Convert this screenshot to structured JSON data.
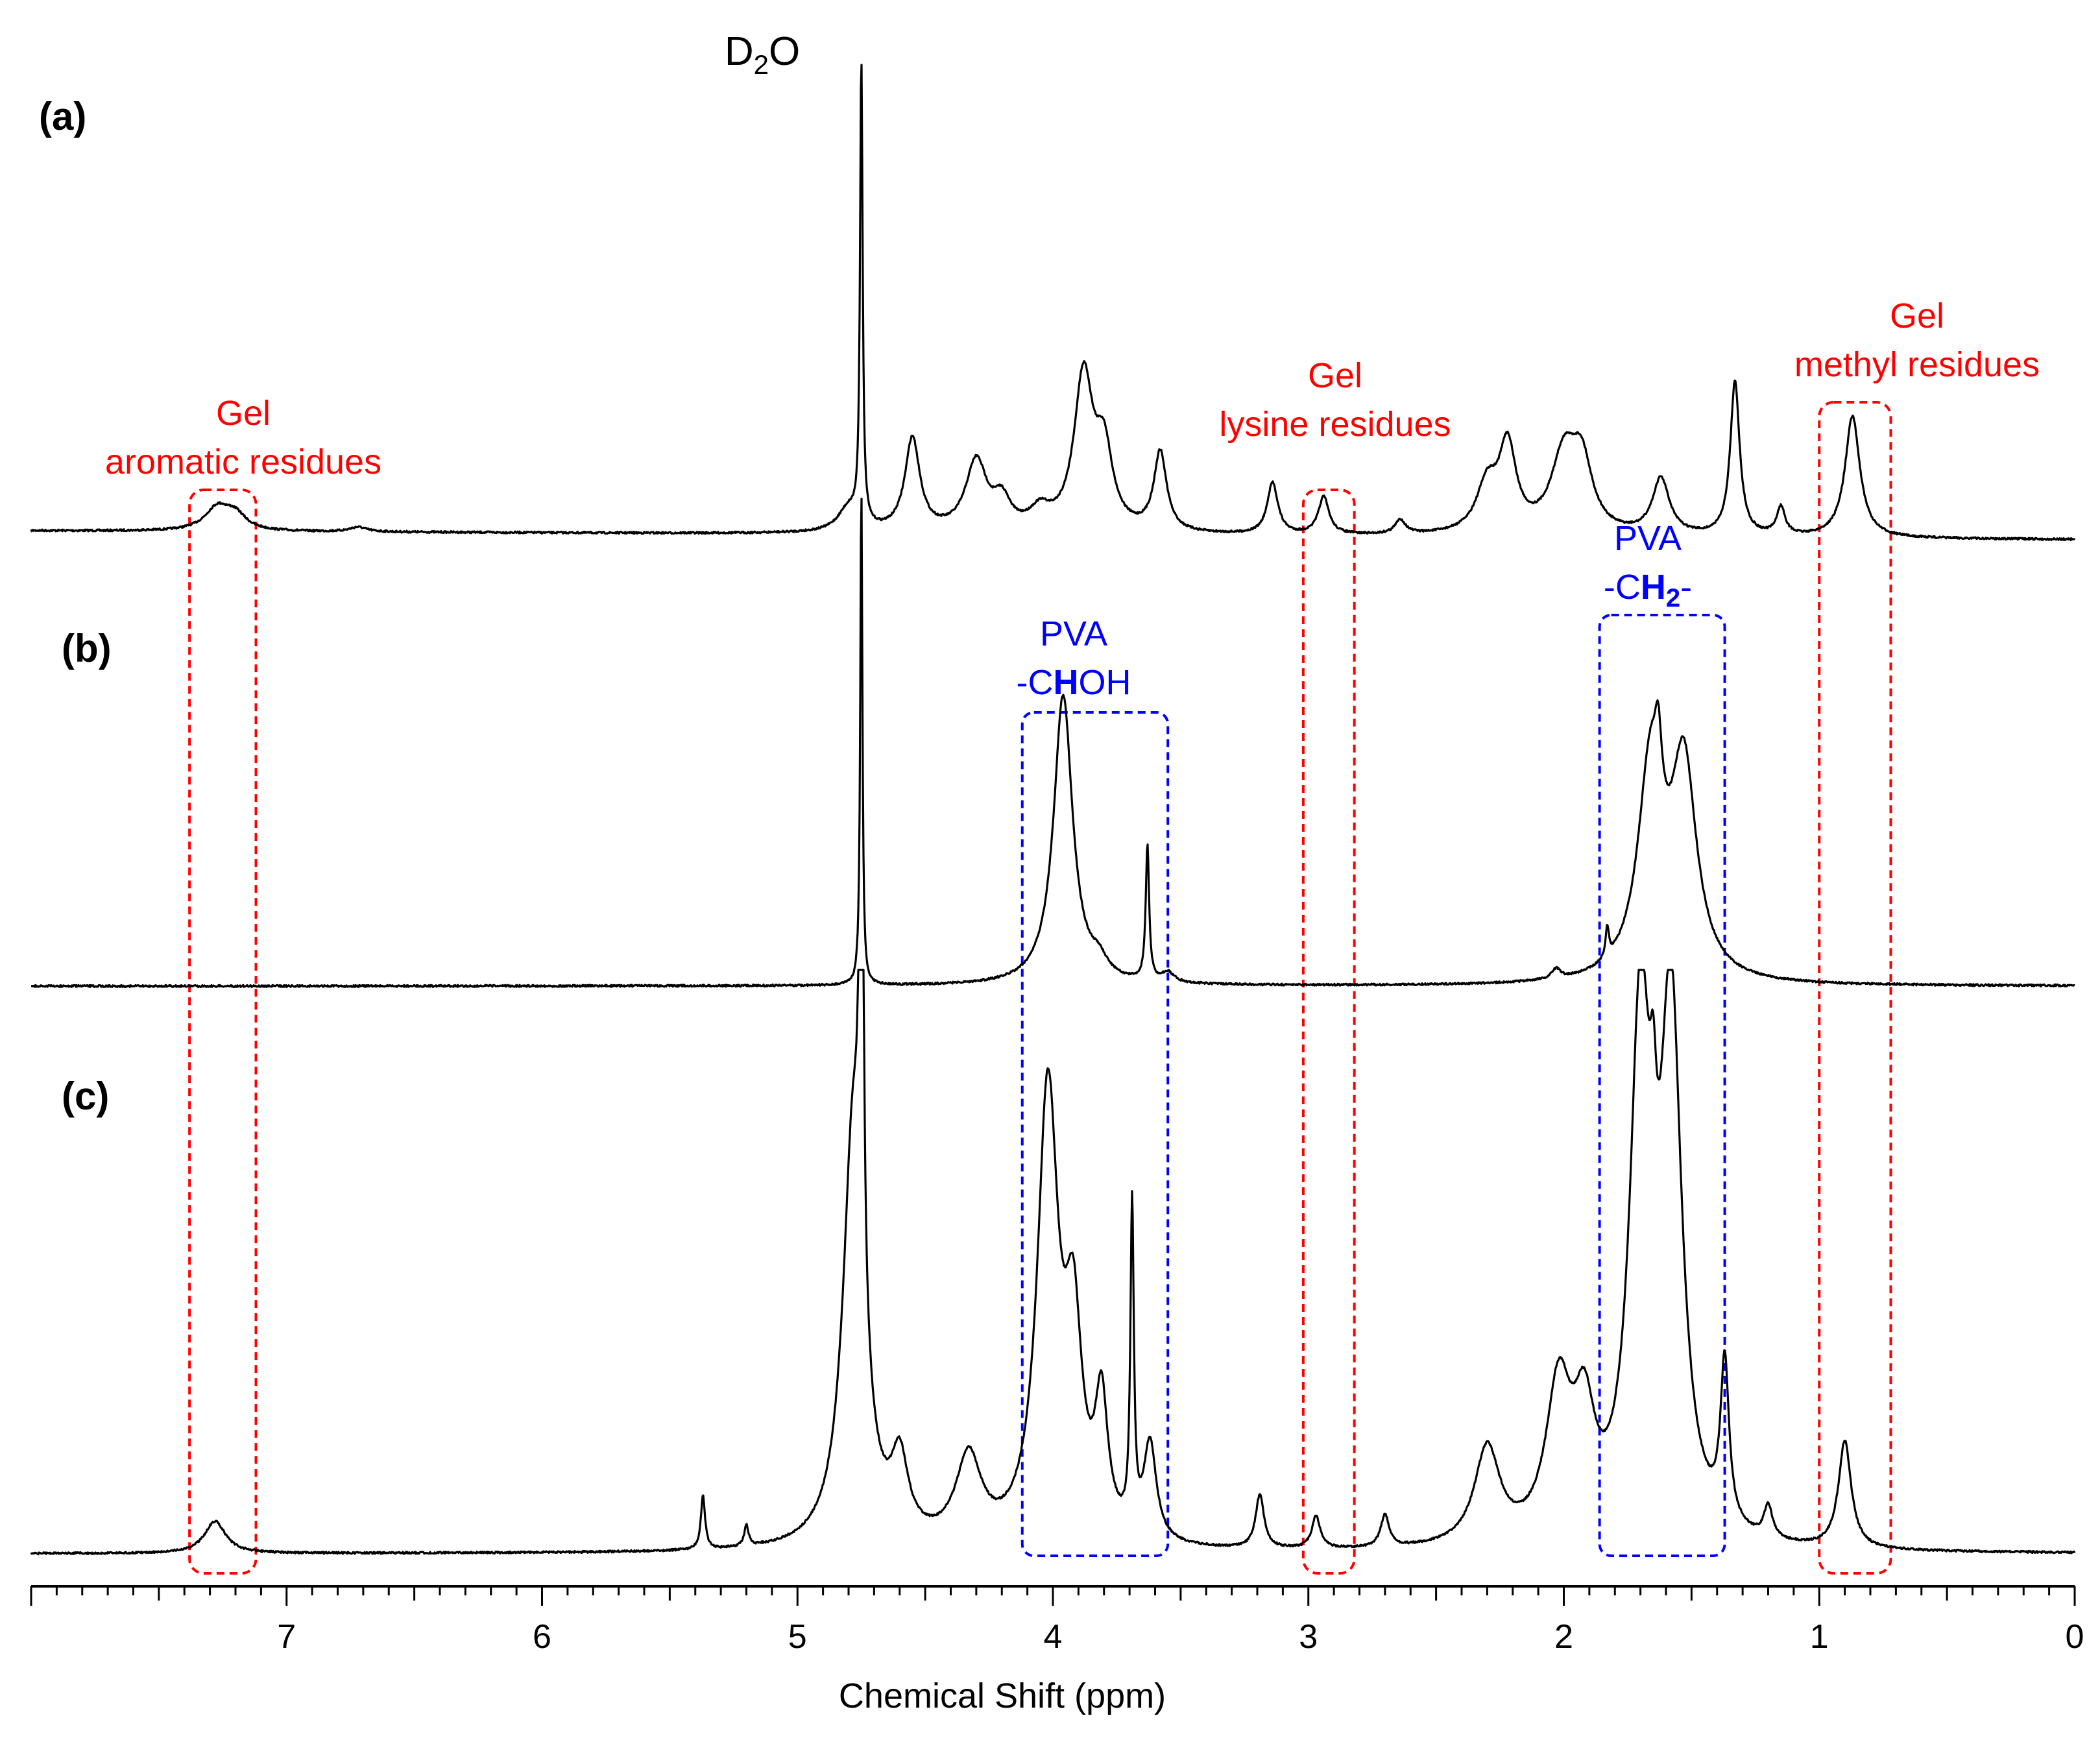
{
  "chart_data": {
    "type": "line",
    "title": "",
    "xlabel": "Chemical Shift (ppm)",
    "ylabel": "",
    "xlim": [
      8.0,
      0.0
    ],
    "x_reversed": true,
    "xticks": [
      7,
      6,
      5,
      4,
      3,
      2,
      1,
      0
    ],
    "xtick_labels": [
      "7",
      "6",
      "5",
      "4",
      "3",
      "2",
      "1",
      "0"
    ],
    "minor_tick_step": 0.1,
    "major_tick_step": 0.5,
    "solvent_peak": {
      "label_main": "D",
      "label_sub": "2",
      "label_end": "O",
      "ppm": 4.75
    },
    "series": [
      {
        "name": "(a)",
        "baseline": 0,
        "peaks": [
          {
            "ppm": 7.27,
            "height": 0.05,
            "width": 0.06
          },
          {
            "ppm": 7.2,
            "height": 0.03,
            "width": 0.05
          },
          {
            "ppm": 6.72,
            "height": 0.01,
            "width": 0.04
          },
          {
            "ppm": 4.75,
            "height": 1.0,
            "width": 0.006
          },
          {
            "ppm": 4.8,
            "height": 0.05,
            "width": 0.05
          },
          {
            "ppm": 4.55,
            "height": 0.2,
            "width": 0.035
          },
          {
            "ppm": 4.3,
            "height": 0.15,
            "width": 0.05
          },
          {
            "ppm": 4.2,
            "height": 0.06,
            "width": 0.04
          },
          {
            "ppm": 4.05,
            "height": 0.04,
            "width": 0.05
          },
          {
            "ppm": 3.88,
            "height": 0.33,
            "width": 0.045
          },
          {
            "ppm": 3.8,
            "height": 0.16,
            "width": 0.04
          },
          {
            "ppm": 3.58,
            "height": 0.17,
            "width": 0.03
          },
          {
            "ppm": 3.14,
            "height": 0.11,
            "width": 0.025
          },
          {
            "ppm": 2.94,
            "height": 0.08,
            "width": 0.025
          },
          {
            "ppm": 2.64,
            "height": 0.03,
            "width": 0.025
          },
          {
            "ppm": 2.3,
            "height": 0.1,
            "width": 0.05
          },
          {
            "ppm": 2.22,
            "height": 0.18,
            "width": 0.04
          },
          {
            "ppm": 2.0,
            "height": 0.16,
            "width": 0.06
          },
          {
            "ppm": 1.93,
            "height": 0.14,
            "width": 0.05
          },
          {
            "ppm": 1.62,
            "height": 0.12,
            "width": 0.04
          },
          {
            "ppm": 1.33,
            "height": 0.33,
            "width": 0.022
          },
          {
            "ppm": 1.15,
            "height": 0.06,
            "width": 0.02
          },
          {
            "ppm": 0.87,
            "height": 0.26,
            "width": 0.035
          }
        ]
      },
      {
        "name": "(b)",
        "baseline": 0,
        "peaks": [
          {
            "ppm": 4.75,
            "height": 1.0,
            "width": 0.005
          },
          {
            "ppm": 3.96,
            "height": 0.58,
            "width": 0.045
          },
          {
            "ppm": 3.82,
            "height": 0.03,
            "width": 0.04
          },
          {
            "ppm": 3.63,
            "height": 0.27,
            "width": 0.008
          },
          {
            "ppm": 3.55,
            "height": 0.02,
            "width": 0.03
          },
          {
            "ppm": 2.03,
            "height": 0.02,
            "width": 0.02
          },
          {
            "ppm": 1.83,
            "height": 0.06,
            "width": 0.008
          },
          {
            "ppm": 1.66,
            "height": 0.42,
            "width": 0.06
          },
          {
            "ppm": 1.53,
            "height": 0.42,
            "width": 0.06
          },
          {
            "ppm": 1.63,
            "height": 0.12,
            "width": 0.015
          }
        ]
      },
      {
        "name": "(c)",
        "baseline": 0,
        "peaks": [
          {
            "ppm": 7.28,
            "height": 0.03,
            "width": 0.05
          },
          {
            "ppm": 5.37,
            "height": 0.05,
            "width": 0.01
          },
          {
            "ppm": 5.2,
            "height": 0.02,
            "width": 0.01
          },
          {
            "ppm": 4.75,
            "height": 1.0,
            "width": 0.006
          },
          {
            "ppm": 4.78,
            "height": 0.4,
            "width": 0.05
          },
          {
            "ppm": 4.6,
            "height": 0.07,
            "width": 0.04
          },
          {
            "ppm": 4.33,
            "height": 0.08,
            "width": 0.06
          },
          {
            "ppm": 4.02,
            "height": 0.42,
            "width": 0.05
          },
          {
            "ppm": 3.92,
            "height": 0.18,
            "width": 0.04
          },
          {
            "ppm": 3.81,
            "height": 0.12,
            "width": 0.03
          },
          {
            "ppm": 3.69,
            "height": 0.3,
            "width": 0.008
          },
          {
            "ppm": 3.62,
            "height": 0.09,
            "width": 0.03
          },
          {
            "ppm": 3.19,
            "height": 0.05,
            "width": 0.02
          },
          {
            "ppm": 2.97,
            "height": 0.03,
            "width": 0.02
          },
          {
            "ppm": 2.7,
            "height": 0.03,
            "width": 0.02
          },
          {
            "ppm": 2.3,
            "height": 0.09,
            "width": 0.06
          },
          {
            "ppm": 2.02,
            "height": 0.14,
            "width": 0.06
          },
          {
            "ppm": 1.92,
            "height": 0.1,
            "width": 0.05
          },
          {
            "ppm": 1.7,
            "height": 0.47,
            "width": 0.05
          },
          {
            "ppm": 1.58,
            "height": 0.48,
            "width": 0.05
          },
          {
            "ppm": 1.65,
            "height": 0.1,
            "width": 0.015
          },
          {
            "ppm": 1.37,
            "height": 0.15,
            "width": 0.02
          },
          {
            "ppm": 1.2,
            "height": 0.03,
            "width": 0.02
          },
          {
            "ppm": 0.9,
            "height": 0.1,
            "width": 0.03
          }
        ]
      }
    ],
    "annotations": {
      "red": [
        {
          "line1": "Gel",
          "line2": "aromatic residues",
          "ppm_range": [
            7.38,
            7.12
          ],
          "panels": "a-c"
        },
        {
          "line1": "Gel",
          "line2": "lysine residues",
          "ppm_range": [
            3.02,
            2.82
          ],
          "panels": "a-c"
        },
        {
          "line1": "Gel",
          "line2": "methyl residues",
          "ppm_range": [
            1.0,
            0.72
          ],
          "panels": "a-c"
        }
      ],
      "blue": [
        {
          "line1": "PVA",
          "line2_pre": "-C",
          "line2_bold": "H",
          "line2_post": "OH",
          "ppm_range": [
            4.12,
            3.55
          ],
          "panels": "b-c"
        },
        {
          "line1": "PVA",
          "line2_pre": "-C",
          "line2_bold": "H",
          "line2_sub": "2",
          "line2_post": "-",
          "ppm_range": [
            1.86,
            1.37
          ],
          "panels": "b-c"
        }
      ]
    }
  }
}
